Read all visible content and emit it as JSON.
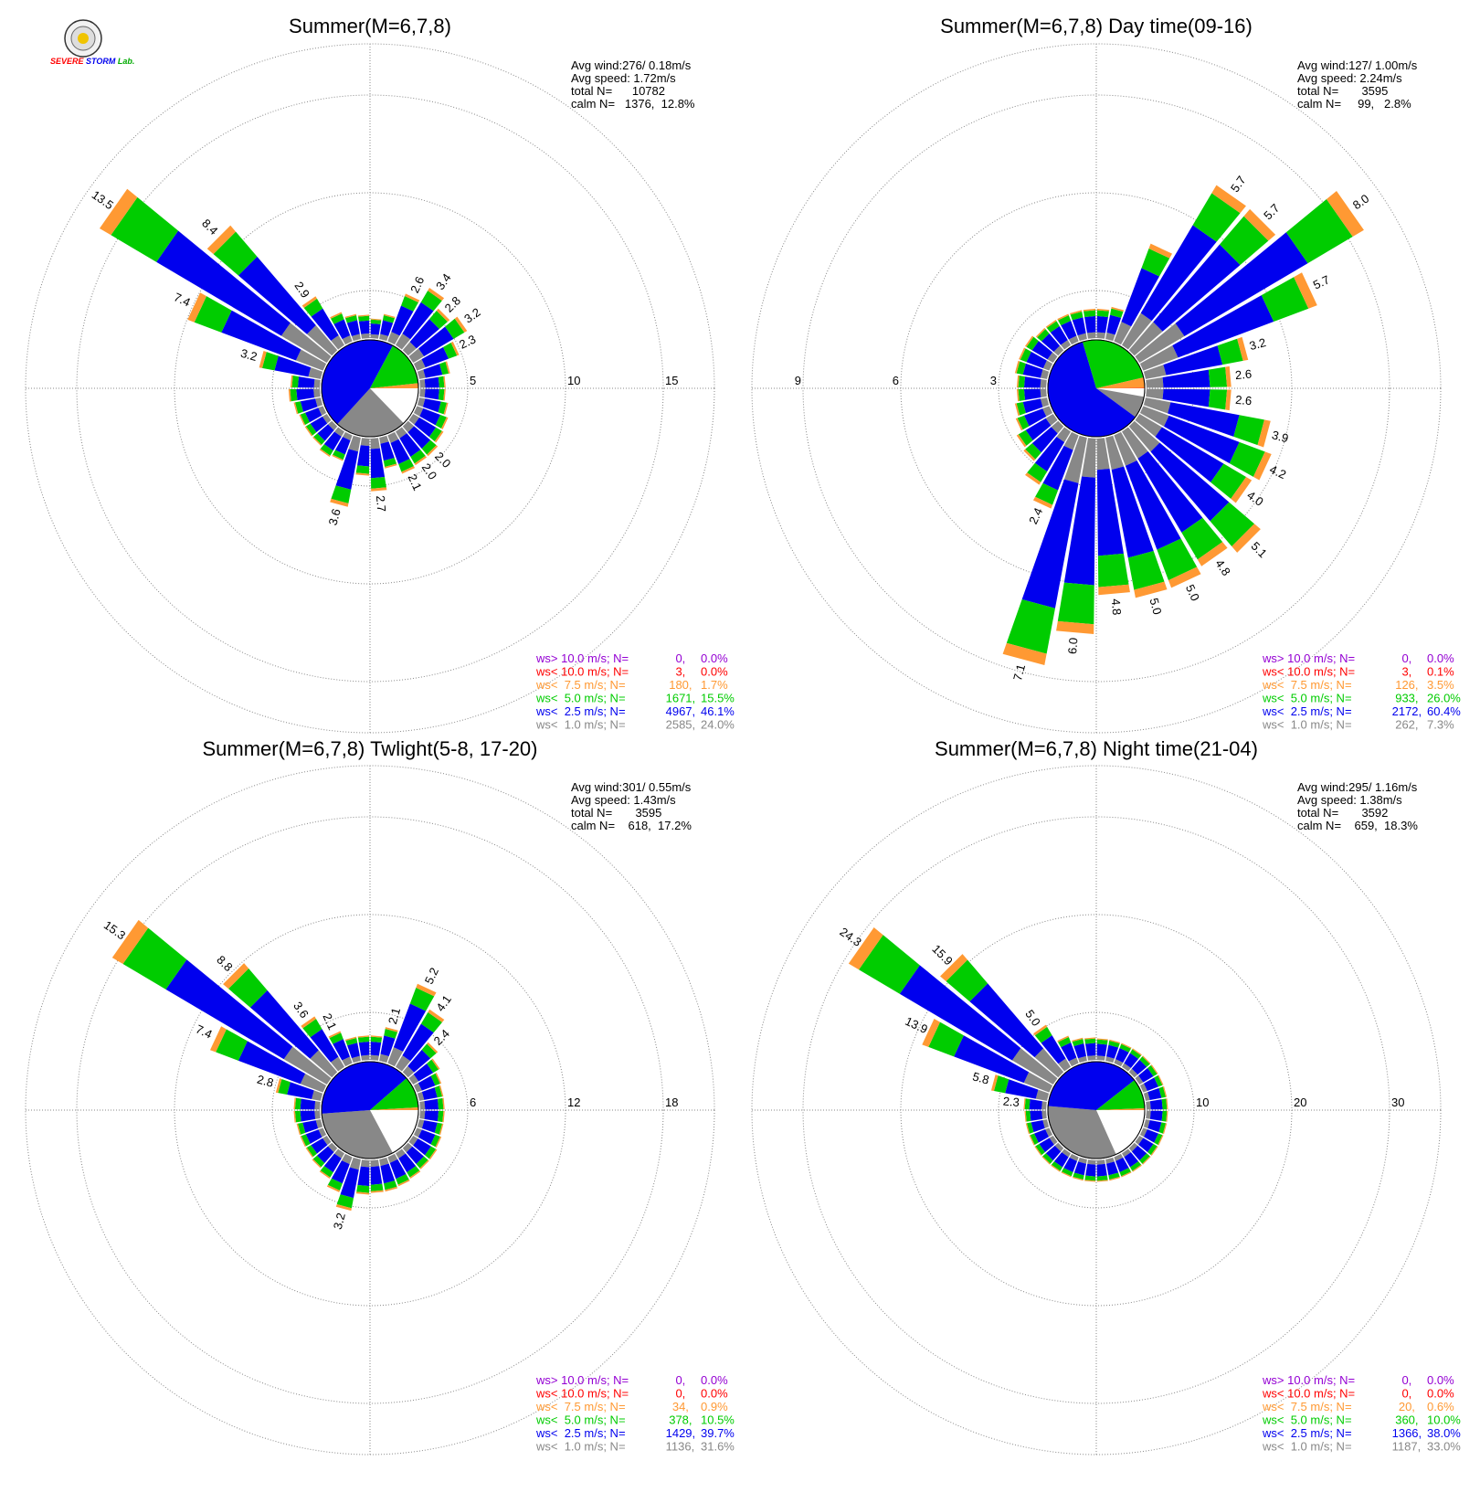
{
  "logo": {
    "text_top": "SEVERE",
    "text_bottom": "STORM",
    "text_lab": "Lab."
  },
  "colors": {
    "gt10": "#9400d3",
    "lt10": "#ff0000",
    "lt75": "#ff9933",
    "lt50": "#00cc00",
    "lt25": "#0000ee",
    "lt10ms": "#888888",
    "grid": "#888888",
    "text": "#000000"
  },
  "chart_data": [
    {
      "type": "wind-rose",
      "title": "Summer(M=6,7,8)",
      "stats": [
        "Avg wind:276/ 0.18m/s",
        "Avg speed: 1.72m/s",
        "total N=      10782",
        "calm N=   1376,  12.8%"
      ],
      "ring_labels": [
        "5",
        "10",
        "15"
      ],
      "rmax": 17.5,
      "center_pie": [
        12.8,
        24.0,
        46.1,
        15.5,
        1.7,
        0.0
      ],
      "petals": [
        {
          "dir": 5,
          "len": 1.0
        },
        {
          "dir": 15,
          "len": 1.3
        },
        {
          "dir": 25,
          "len": 2.6,
          "label": "2.6"
        },
        {
          "dir": 35,
          "len": 3.4,
          "label": "3.4"
        },
        {
          "dir": 45,
          "len": 2.8,
          "label": "2.8"
        },
        {
          "dir": 55,
          "len": 3.2,
          "label": "3.2"
        },
        {
          "dir": 65,
          "len": 2.3,
          "label": "2.3"
        },
        {
          "dir": 75,
          "len": 1.6
        },
        {
          "dir": 85,
          "len": 1.3
        },
        {
          "dir": 95,
          "len": 1.3
        },
        {
          "dir": 105,
          "len": 1.5
        },
        {
          "dir": 115,
          "len": 1.7
        },
        {
          "dir": 125,
          "len": 1.8
        },
        {
          "dir": 135,
          "len": 2.0,
          "label": "2.0"
        },
        {
          "dir": 145,
          "len": 2.0,
          "label": "2.0"
        },
        {
          "dir": 155,
          "len": 2.1,
          "label": "2.1"
        },
        {
          "dir": 165,
          "len": 1.6
        },
        {
          "dir": 175,
          "len": 2.7,
          "label": "2.7"
        },
        {
          "dir": 185,
          "len": 1.9
        },
        {
          "dir": 195,
          "len": 3.6,
          "label": "3.6"
        },
        {
          "dir": 205,
          "len": 1.4
        },
        {
          "dir": 215,
          "len": 1.5
        },
        {
          "dir": 225,
          "len": 1.3
        },
        {
          "dir": 235,
          "len": 1.3
        },
        {
          "dir": 245,
          "len": 1.3
        },
        {
          "dir": 255,
          "len": 1.4
        },
        {
          "dir": 265,
          "len": 1.6
        },
        {
          "dir": 275,
          "len": 1.5
        },
        {
          "dir": 285,
          "len": 3.2,
          "label": "3.2"
        },
        {
          "dir": 295,
          "len": 7.4,
          "label": "7.4"
        },
        {
          "dir": 305,
          "len": 13.5,
          "label": "13.5"
        },
        {
          "dir": 315,
          "len": 8.4,
          "label": "8.4"
        },
        {
          "dir": 325,
          "len": 2.9,
          "label": "2.9"
        },
        {
          "dir": 335,
          "len": 1.6
        },
        {
          "dir": 345,
          "len": 1.3
        },
        {
          "dir": 355,
          "len": 1.2
        }
      ],
      "legend": [
        {
          "label": "ws> 10.0 m/s; N=",
          "n": "0",
          "pct": "0.0%"
        },
        {
          "label": "ws< 10.0 m/s; N=",
          "n": "3",
          "pct": "0.0%"
        },
        {
          "label": "ws<  7.5 m/s; N=",
          "n": "180",
          "pct": "1.7%"
        },
        {
          "label": "ws<  5.0 m/s; N=",
          "n": "1671",
          "pct": "15.5%"
        },
        {
          "label": "ws<  2.5 m/s; N=",
          "n": "4967",
          "pct": "46.1%"
        },
        {
          "label": "ws<  1.0 m/s; N=",
          "n": "2585",
          "pct": "24.0%"
        }
      ]
    },
    {
      "type": "wind-rose",
      "title": "Summer(M=6,7,8) Day time(09-16)",
      "stats": [
        "Avg wind:127/ 1.00m/s",
        "Avg speed: 2.24m/s",
        "total N=       3595",
        "calm N=     99,   2.8%"
      ],
      "ring_labels": [
        "3",
        "6",
        "9"
      ],
      "rmax": 10.5,
      "left_ring_labels": true,
      "center_pie": [
        2.8,
        7.3,
        60.4,
        26.0,
        3.5,
        0.1
      ],
      "petals": [
        {
          "dir": 5,
          "len": 0.9
        },
        {
          "dir": 15,
          "len": 1.0
        },
        {
          "dir": 25,
          "len": 3.2
        },
        {
          "dir": 35,
          "len": 5.7,
          "label": "5.7"
        },
        {
          "dir": 45,
          "len": 5.7,
          "label": "5.7"
        },
        {
          "dir": 55,
          "len": 8.0,
          "label": "8.0"
        },
        {
          "dir": 65,
          "len": 5.7,
          "label": "5.7"
        },
        {
          "dir": 75,
          "len": 3.2,
          "label": "3.2"
        },
        {
          "dir": 85,
          "len": 2.6,
          "label": "2.6"
        },
        {
          "dir": 95,
          "len": 2.6,
          "label": "2.6"
        },
        {
          "dir": 105,
          "len": 3.9,
          "label": "3.9"
        },
        {
          "dir": 115,
          "len": 4.2,
          "label": "4.2"
        },
        {
          "dir": 125,
          "len": 4.0,
          "label": "4.0"
        },
        {
          "dir": 135,
          "len": 5.1,
          "label": "5.1"
        },
        {
          "dir": 145,
          "len": 4.8,
          "label": "4.8"
        },
        {
          "dir": 155,
          "len": 5.0,
          "label": "5.0"
        },
        {
          "dir": 165,
          "len": 5.0,
          "label": "5.0"
        },
        {
          "dir": 175,
          "len": 4.8,
          "label": "4.8"
        },
        {
          "dir": 185,
          "len": 6.0,
          "label": "6.0"
        },
        {
          "dir": 195,
          "len": 7.1,
          "label": "7.1"
        },
        {
          "dir": 205,
          "len": 2.4,
          "label": "2.4"
        },
        {
          "dir": 215,
          "len": 1.9
        },
        {
          "dir": 225,
          "len": 1.4
        },
        {
          "dir": 235,
          "len": 1.3
        },
        {
          "dir": 245,
          "len": 1.1
        },
        {
          "dir": 255,
          "len": 1.0
        },
        {
          "dir": 265,
          "len": 0.9
        },
        {
          "dir": 275,
          "len": 0.9
        },
        {
          "dir": 285,
          "len": 1.0
        },
        {
          "dir": 295,
          "len": 1.0
        },
        {
          "dir": 305,
          "len": 1.0
        },
        {
          "dir": 315,
          "len": 0.9
        },
        {
          "dir": 325,
          "len": 0.9
        },
        {
          "dir": 335,
          "len": 0.9
        },
        {
          "dir": 345,
          "len": 0.9
        },
        {
          "dir": 355,
          "len": 0.9
        }
      ],
      "legend": [
        {
          "label": "ws> 10.0 m/s; N=",
          "n": "0",
          "pct": "0.0%"
        },
        {
          "label": "ws< 10.0 m/s; N=",
          "n": "3",
          "pct": "0.1%"
        },
        {
          "label": "ws<  7.5 m/s; N=",
          "n": "126",
          "pct": "3.5%"
        },
        {
          "label": "ws<  5.0 m/s; N=",
          "n": "933",
          "pct": "26.0%"
        },
        {
          "label": "ws<  2.5 m/s; N=",
          "n": "2172",
          "pct": "60.4%"
        },
        {
          "label": "ws<  1.0 m/s; N=",
          "n": "262",
          "pct": "7.3%"
        }
      ]
    },
    {
      "type": "wind-rose",
      "title": "Summer(M=6,7,8) Twlight(5-8, 17-20)",
      "stats": [
        "Avg wind:301/ 0.55m/s",
        "Avg speed: 1.43m/s",
        "total N=       3595",
        "calm N=    618,  17.2%"
      ],
      "ring_labels": [
        "6",
        "12",
        "18"
      ],
      "rmax": 21,
      "center_pie": [
        17.2,
        31.6,
        39.7,
        10.5,
        0.9,
        0.0
      ],
      "petals": [
        {
          "dir": 5,
          "len": 1.5
        },
        {
          "dir": 15,
          "len": 2.1,
          "label": "2.1"
        },
        {
          "dir": 25,
          "len": 5.2,
          "label": "5.2"
        },
        {
          "dir": 35,
          "len": 4.1,
          "label": "4.1"
        },
        {
          "dir": 45,
          "len": 2.4,
          "label": "2.4"
        },
        {
          "dir": 55,
          "len": 1.9
        },
        {
          "dir": 65,
          "len": 1.6
        },
        {
          "dir": 75,
          "len": 1.5
        },
        {
          "dir": 85,
          "len": 1.5
        },
        {
          "dir": 95,
          "len": 1.5
        },
        {
          "dir": 105,
          "len": 1.5
        },
        {
          "dir": 115,
          "len": 1.6
        },
        {
          "dir": 125,
          "len": 1.7
        },
        {
          "dir": 135,
          "len": 1.7
        },
        {
          "dir": 145,
          "len": 1.8
        },
        {
          "dir": 155,
          "len": 1.9
        },
        {
          "dir": 165,
          "len": 2.0
        },
        {
          "dir": 175,
          "len": 2.0
        },
        {
          "dir": 185,
          "len": 2.1
        },
        {
          "dir": 195,
          "len": 3.2,
          "label": "3.2"
        },
        {
          "dir": 205,
          "len": 2.3
        },
        {
          "dir": 215,
          "len": 1.8
        },
        {
          "dir": 225,
          "len": 1.6
        },
        {
          "dir": 235,
          "len": 1.5
        },
        {
          "dir": 245,
          "len": 1.5
        },
        {
          "dir": 255,
          "len": 1.5
        },
        {
          "dir": 265,
          "len": 1.6
        },
        {
          "dir": 275,
          "len": 1.6
        },
        {
          "dir": 285,
          "len": 2.8,
          "label": "2.8"
        },
        {
          "dir": 295,
          "len": 7.4,
          "label": "7.4"
        },
        {
          "dir": 305,
          "len": 15.3,
          "label": "15.3"
        },
        {
          "dir": 315,
          "len": 8.8,
          "label": "8.8"
        },
        {
          "dir": 325,
          "len": 3.6,
          "label": "3.6"
        },
        {
          "dir": 335,
          "len": 2.1,
          "label": "2.1"
        },
        {
          "dir": 345,
          "len": 1.5
        },
        {
          "dir": 355,
          "len": 1.5
        }
      ],
      "legend": [
        {
          "label": "ws> 10.0 m/s; N=",
          "n": "0",
          "pct": "0.0%"
        },
        {
          "label": "ws< 10.0 m/s; N=",
          "n": "0",
          "pct": "0.0%"
        },
        {
          "label": "ws<  7.5 m/s; N=",
          "n": "34",
          "pct": "0.9%"
        },
        {
          "label": "ws<  5.0 m/s; N=",
          "n": "378",
          "pct": "10.5%"
        },
        {
          "label": "ws<  2.5 m/s; N=",
          "n": "1429",
          "pct": "39.7%"
        },
        {
          "label": "ws<  1.0 m/s; N=",
          "n": "1136",
          "pct": "31.6%"
        }
      ]
    },
    {
      "type": "wind-rose",
      "title": "Summer(M=6,7,8) Night time(21-04)",
      "stats": [
        "Avg wind:295/ 1.16m/s",
        "Avg speed: 1.38m/s",
        "total N=       3592",
        "calm N=    659,  18.3%"
      ],
      "ring_labels": [
        "10",
        "20",
        "30"
      ],
      "rmax": 35,
      "center_pie": [
        18.3,
        33.0,
        38.0,
        10.0,
        0.6,
        0.0
      ],
      "petals": [
        {
          "dir": 5,
          "len": 2.2
        },
        {
          "dir": 15,
          "len": 2.2
        },
        {
          "dir": 25,
          "len": 2.2
        },
        {
          "dir": 35,
          "len": 2.2
        },
        {
          "dir": 45,
          "len": 2.2
        },
        {
          "dir": 55,
          "len": 2.2
        },
        {
          "dir": 65,
          "len": 2.2
        },
        {
          "dir": 75,
          "len": 2.2
        },
        {
          "dir": 85,
          "len": 2.2
        },
        {
          "dir": 95,
          "len": 2.2
        },
        {
          "dir": 105,
          "len": 2.2
        },
        {
          "dir": 115,
          "len": 2.2
        },
        {
          "dir": 125,
          "len": 2.2
        },
        {
          "dir": 135,
          "len": 2.2
        },
        {
          "dir": 145,
          "len": 2.2
        },
        {
          "dir": 155,
          "len": 2.2
        },
        {
          "dir": 165,
          "len": 2.2
        },
        {
          "dir": 175,
          "len": 2.2
        },
        {
          "dir": 185,
          "len": 2.2
        },
        {
          "dir": 195,
          "len": 2.2
        },
        {
          "dir": 205,
          "len": 2.2
        },
        {
          "dir": 215,
          "len": 2.2
        },
        {
          "dir": 225,
          "len": 2.2
        },
        {
          "dir": 235,
          "len": 2.2
        },
        {
          "dir": 245,
          "len": 2.2
        },
        {
          "dir": 255,
          "len": 2.2
        },
        {
          "dir": 265,
          "len": 2.2
        },
        {
          "dir": 275,
          "len": 2.3,
          "label": "2.3"
        },
        {
          "dir": 285,
          "len": 5.8,
          "label": "5.8"
        },
        {
          "dir": 295,
          "len": 13.9,
          "label": "13.9"
        },
        {
          "dir": 305,
          "len": 24.3,
          "label": "24.3"
        },
        {
          "dir": 315,
          "len": 15.9,
          "label": "15.9"
        },
        {
          "dir": 325,
          "len": 5.0,
          "label": "5.0"
        },
        {
          "dir": 335,
          "len": 3.0
        },
        {
          "dir": 345,
          "len": 2.4
        },
        {
          "dir": 355,
          "len": 2.3
        }
      ],
      "legend": [
        {
          "label": "ws> 10.0 m/s; N=",
          "n": "0",
          "pct": "0.0%"
        },
        {
          "label": "ws< 10.0 m/s; N=",
          "n": "0",
          "pct": "0.0%"
        },
        {
          "label": "ws<  7.5 m/s; N=",
          "n": "20",
          "pct": "0.6%"
        },
        {
          "label": "ws<  5.0 m/s; N=",
          "n": "360",
          "pct": "10.0%"
        },
        {
          "label": "ws<  2.5 m/s; N=",
          "n": "1366",
          "pct": "38.0%"
        },
        {
          "label": "ws<  1.0 m/s; N=",
          "n": "1187",
          "pct": "33.0%"
        }
      ]
    }
  ]
}
